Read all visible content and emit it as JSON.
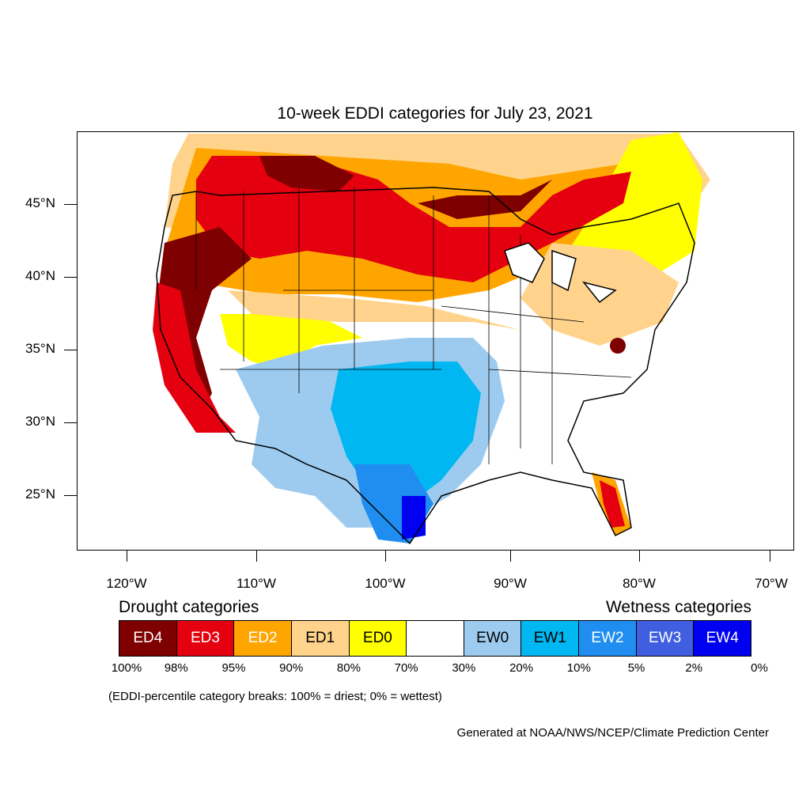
{
  "title": "10-week EDDI categories for July 23, 2021",
  "axes": {
    "lat_labels": [
      "45°N",
      "40°N",
      "35°N",
      "30°N",
      "25°N"
    ],
    "lon_labels": [
      "120°W",
      "110°W",
      "100°W",
      "90°W",
      "80°W",
      "70°W"
    ]
  },
  "legend": {
    "drought_title": "Drought categories",
    "wetness_title": "Wetness categories",
    "categories": [
      {
        "label": "ED4",
        "color": "#7f0000",
        "text_color": "#ffffff"
      },
      {
        "label": "ED3",
        "color": "#e4000f",
        "text_color": "#ffffff"
      },
      {
        "label": "ED2",
        "color": "#ffa500",
        "text_color": "#ffffff"
      },
      {
        "label": "ED1",
        "color": "#ffd38c",
        "text_color": "#000000"
      },
      {
        "label": "ED0",
        "color": "#ffff00",
        "text_color": "#000000"
      },
      {
        "label": "",
        "color": "#ffffff",
        "text_color": "#000000"
      },
      {
        "label": "EW0",
        "color": "#9dcbef",
        "text_color": "#000000"
      },
      {
        "label": "EW1",
        "color": "#00b7f1",
        "text_color": "#000000"
      },
      {
        "label": "EW2",
        "color": "#1f8ef0",
        "text_color": "#ffffff"
      },
      {
        "label": "EW3",
        "color": "#3f5fe0",
        "text_color": "#ffffff"
      },
      {
        "label": "EW4",
        "color": "#0000f0",
        "text_color": "#ffffff"
      }
    ],
    "breaks": [
      "100%",
      "98%",
      "95%",
      "90%",
      "80%",
      "70%",
      "30%",
      "20%",
      "10%",
      "5%",
      "2%",
      "0%"
    ]
  },
  "note": "(EDDI-percentile category breaks: 100% = driest; 0% = wettest)",
  "credit": "Generated at NOAA/NWS/NCEP/Climate Prediction Center"
}
